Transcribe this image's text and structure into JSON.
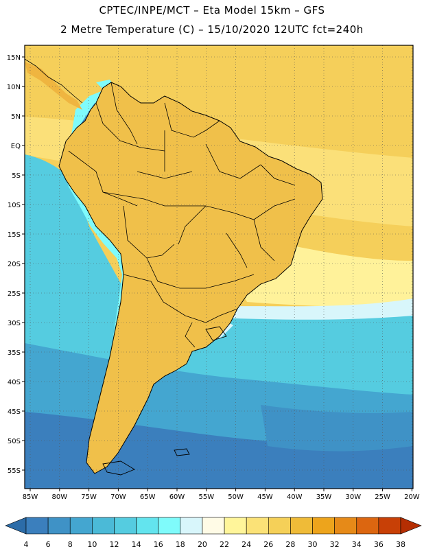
{
  "header": {
    "title_line1": "CPTEC/INPE/MCT –  Eta Model 15km – GFS",
    "title_line2": "2 Metre Temperature (C) – 15/10/2020 12UTC fct=240h"
  },
  "map": {
    "lat_labels": [
      "15N",
      "10N",
      "5N",
      "EQ",
      "5S",
      "10S",
      "15S",
      "20S",
      "25S",
      "30S",
      "35S",
      "40S",
      "45S",
      "50S",
      "55S"
    ],
    "lon_labels": [
      "85W",
      "80W",
      "75W",
      "70W",
      "65W",
      "60W",
      "55W",
      "50W",
      "45W",
      "40W",
      "35W",
      "30W",
      "25W",
      "20W"
    ]
  },
  "colorbar": {
    "labels": [
      "4",
      "6",
      "8",
      "10",
      "12",
      "14",
      "16",
      "18",
      "20",
      "22",
      "24",
      "26",
      "28",
      "30",
      "32",
      "34",
      "36",
      "38"
    ],
    "colors": [
      "#2c6ca8",
      "#3b7fbd",
      "#3f92c6",
      "#44a6d0",
      "#4bbad7",
      "#55cce0",
      "#63e4ee",
      "#7ffbfb",
      "#d8f6fb",
      "#fffbe6",
      "#fff59a",
      "#fbe277",
      "#f5d058",
      "#efbb38",
      "#eda41c",
      "#e68a18",
      "#dc6610",
      "#c84006",
      "#b52e02"
    ]
  }
}
